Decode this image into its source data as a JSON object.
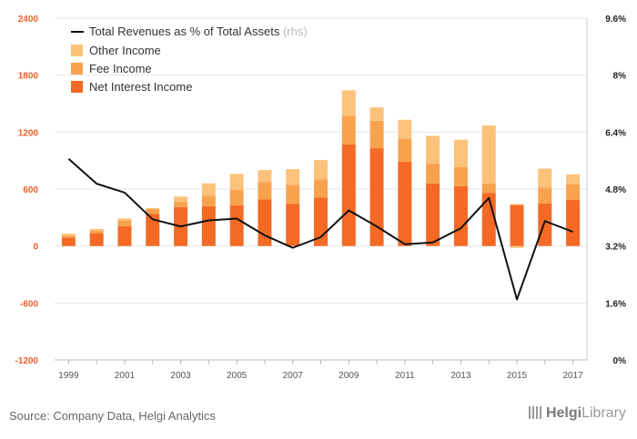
{
  "chart_data": {
    "type": "bar",
    "stacked": true,
    "years": [
      1999,
      2000,
      2001,
      2002,
      2003,
      2004,
      2005,
      2006,
      2007,
      2008,
      2009,
      2010,
      2011,
      2012,
      2013,
      2014,
      2015,
      2016,
      2017
    ],
    "series": [
      {
        "name": "Net Interest Income",
        "color": "#f46a24",
        "values": [
          90,
          135,
          210,
          340,
          410,
          420,
          430,
          490,
          445,
          510,
          1070,
          1030,
          890,
          660,
          630,
          560,
          430,
          450,
          485
        ]
      },
      {
        "name": "Fee Income",
        "color": "#f9a24d",
        "values": [
          20,
          25,
          60,
          50,
          55,
          110,
          160,
          185,
          200,
          190,
          300,
          290,
          240,
          210,
          200,
          100,
          10,
          165,
          165
        ]
      },
      {
        "name": "Other Income",
        "color": "#fcc27a",
        "values": [
          20,
          20,
          20,
          10,
          55,
          130,
          170,
          125,
          165,
          205,
          270,
          140,
          200,
          290,
          290,
          610,
          -20,
          200,
          105
        ]
      }
    ],
    "line": {
      "name": "Total Revenues as % of Total Assets",
      "suffix": "(rhs)",
      "color": "#111111",
      "values": [
        5.65,
        4.95,
        4.7,
        3.95,
        3.75,
        3.92,
        3.97,
        3.5,
        3.15,
        3.45,
        4.2,
        3.75,
        3.25,
        3.3,
        3.7,
        4.55,
        1.7,
        3.9,
        3.6
      ]
    },
    "y_left": {
      "min": -1200,
      "max": 2400,
      "ticks": [
        "2400",
        "1800",
        "1200",
        "600",
        "0",
        "-600",
        "-1200"
      ]
    },
    "y_right": {
      "min": 0,
      "max": 9.6,
      "ticks": [
        "9.6%",
        "8%",
        "6.4%",
        "4.8%",
        "3.2%",
        "1.6%",
        "0%"
      ]
    },
    "x_ticks": [
      "1999",
      "2001",
      "2003",
      "2005",
      "2007",
      "2009",
      "2011",
      "2013",
      "2015",
      "2017"
    ],
    "legend_position": "top-left"
  },
  "source": "Source: Company Data, Helgi Analytics",
  "logo": {
    "brand": "Helgi",
    "suffix": "Library"
  }
}
